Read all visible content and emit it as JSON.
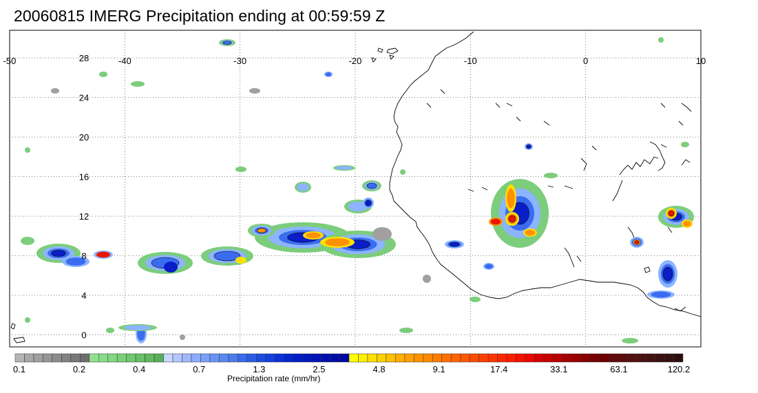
{
  "title": "20060815 IMERG Precipitation ending at 00:59:59 Z",
  "map": {
    "lon_range": [
      -50,
      10
    ],
    "lat_range": [
      -1,
      31
    ],
    "lon_ticks": [
      "-50",
      "-40",
      "-30",
      "-20",
      "-10",
      "0",
      "10"
    ],
    "lat_ticks": [
      "28",
      "24",
      "20",
      "16",
      "12",
      "8",
      "4",
      "0"
    ],
    "grid": "dotted",
    "coastline": true,
    "background": "#ffffff"
  },
  "colorbar": {
    "label": "Precipitation rate (mm/hr)",
    "tick_labels": [
      "0.1",
      "0.2",
      "0.4",
      "0.7",
      "1.3",
      "2.5",
      "4.8",
      "9.1",
      "17.4",
      "33.1",
      "63.1",
      "120.2"
    ],
    "colors": [
      "#b4b4b4",
      "#a8a8a8",
      "#a0a0a0",
      "#969696",
      "#8c8c8c",
      "#828282",
      "#787878",
      "#6e6e6e",
      "#90e090",
      "#88dc88",
      "#80d880",
      "#78d078",
      "#70c870",
      "#68c068",
      "#60b860",
      "#58b058",
      "#c8d8ff",
      "#b4c8ff",
      "#a0b8ff",
      "#8cacff",
      "#7aa0f8",
      "#6894f4",
      "#5a88f0",
      "#4c7cec",
      "#3a6ce8",
      "#2c5ce4",
      "#1e4ce0",
      "#1440dc",
      "#0a32d8",
      "#0426d0",
      "#001ec8",
      "#0018c0",
      "#0014b8",
      "#0010b0",
      "#000ca8",
      "#0008a0",
      "#ffff00",
      "#fff000",
      "#ffe000",
      "#ffd000",
      "#ffc000",
      "#ffb000",
      "#ffa000",
      "#ff9400",
      "#ff8800",
      "#ff7c00",
      "#ff7000",
      "#ff6400",
      "#ff5800",
      "#ff4c00",
      "#ff4000",
      "#ff3400",
      "#ff2800",
      "#ff1c00",
      "#f81000",
      "#e80800",
      "#d80000",
      "#c80000",
      "#b80000",
      "#a80000",
      "#980000",
      "#880000",
      "#780000",
      "#6c0000",
      "#640808",
      "#5c0c0c",
      "#541010",
      "#4c1010",
      "#441010",
      "#3c1010",
      "#341010",
      "#2c0c0c"
    ]
  }
}
